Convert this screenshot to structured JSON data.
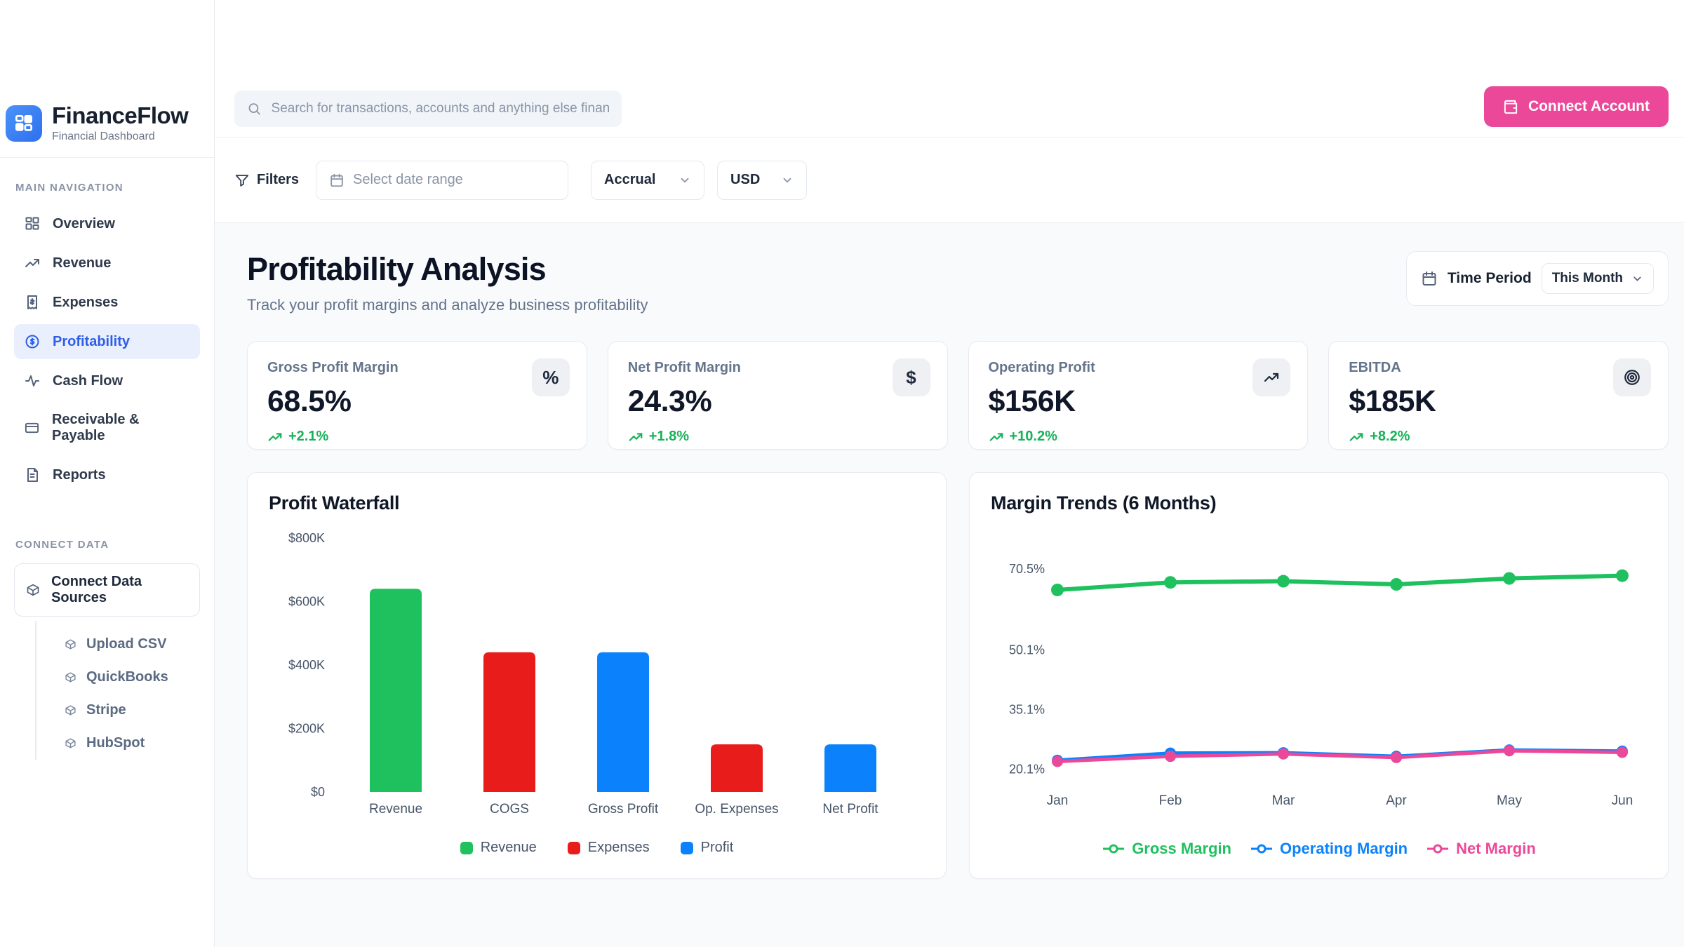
{
  "brand": {
    "name": "FinanceFlow",
    "subtitle": "Financial Dashboard",
    "logo_color": "#3b82f6"
  },
  "sidebar": {
    "main_nav_header": "MAIN NAVIGATION",
    "items": [
      {
        "label": "Overview",
        "icon": "grid-icon",
        "active": false
      },
      {
        "label": "Revenue",
        "icon": "trending-up-icon",
        "active": false
      },
      {
        "label": "Expenses",
        "icon": "receipt-icon",
        "active": false
      },
      {
        "label": "Profitability",
        "icon": "dollar-circle-icon",
        "active": true
      },
      {
        "label": "Cash Flow",
        "icon": "activity-icon",
        "active": false
      },
      {
        "label": "Receivable & Payable",
        "icon": "credit-card-icon",
        "active": false
      },
      {
        "label": "Reports",
        "icon": "file-icon",
        "active": false
      }
    ],
    "connect_header": "CONNECT DATA",
    "connect_button": "Connect Data Sources",
    "connect_items": [
      "Upload CSV",
      "QuickBooks",
      "Stripe",
      "HubSpot"
    ]
  },
  "header": {
    "search_placeholder": "Search for transactions, accounts and anything else financial",
    "connect_account_label": "Connect Account"
  },
  "filter_bar": {
    "filters_label": "Filters",
    "date_range_placeholder": "Select date range",
    "accounting_basis_value": "Accrual",
    "currency_value": "USD"
  },
  "page": {
    "title": "Profitability Analysis",
    "subtitle": "Track your profit margins and analyze business profitability",
    "time_period_label": "Time Period",
    "time_period_value": "This Month"
  },
  "kpi_cards": [
    {
      "label": "Gross Profit Margin",
      "value": "68.5%",
      "delta": "+2.1%",
      "icon": "percent-icon"
    },
    {
      "label": "Net Profit Margin",
      "value": "24.3%",
      "delta": "+1.8%",
      "icon": "dollar-icon"
    },
    {
      "label": "Operating Profit",
      "value": "$156K",
      "delta": "+10.2%",
      "icon": "trending-up-icon"
    },
    {
      "label": "EBITDA",
      "value": "$185K",
      "delta": "+8.2%",
      "icon": "target-icon"
    }
  ],
  "colors": {
    "green": "#1fc15f",
    "red": "#e91c1c",
    "blue": "#0b82fc",
    "pink": "#ec4899",
    "delta_green": "#16b357",
    "active_nav": "#2f5fe8"
  },
  "chart_data": [
    {
      "type": "bar",
      "title": "Profit Waterfall",
      "categories": [
        "Revenue",
        "COGS",
        "Gross Profit",
        "Op. Expenses",
        "Net Profit"
      ],
      "values": [
        640,
        440,
        440,
        150,
        150
      ],
      "value_unit": "thousand USD",
      "bar_colors": [
        "#1fc15f",
        "#e91c1c",
        "#0b82fc",
        "#e91c1c",
        "#0b82fc"
      ],
      "ytick_labels": [
        "$0",
        "$200K",
        "$400K",
        "$600K",
        "$800K"
      ],
      "ytick_values": [
        0,
        200,
        400,
        600,
        800
      ],
      "ylim": [
        0,
        800
      ],
      "grid": false,
      "legend_position": "bottom",
      "legend": [
        {
          "label": "Revenue",
          "color": "#1fc15f"
        },
        {
          "label": "Expenses",
          "color": "#e91c1c"
        },
        {
          "label": "Profit",
          "color": "#0b82fc"
        }
      ]
    },
    {
      "type": "line",
      "title": "Margin Trends (6 Months)",
      "x": [
        "Jan",
        "Feb",
        "Mar",
        "Apr",
        "May",
        "Jun"
      ],
      "series": [
        {
          "name": "Gross Margin",
          "color": "#1fc15f",
          "values": [
            65.2,
            67.1,
            67.4,
            66.6,
            68.1,
            68.8
          ]
        },
        {
          "name": "Operating Margin",
          "color": "#0b82fc",
          "values": [
            22.3,
            24.1,
            24.2,
            23.3,
            24.9,
            24.6
          ]
        },
        {
          "name": "Net Margin",
          "color": "#ec4899",
          "values": [
            22.0,
            23.3,
            23.9,
            23.0,
            24.7,
            24.3
          ]
        }
      ],
      "ytick_labels": [
        "20.1%",
        "35.1%",
        "50.1%",
        "70.5%"
      ],
      "ytick_values": [
        20.1,
        35.1,
        50.1,
        70.5
      ],
      "ylim": [
        17.5,
        73.5
      ],
      "grid": false,
      "legend_position": "bottom"
    }
  ]
}
